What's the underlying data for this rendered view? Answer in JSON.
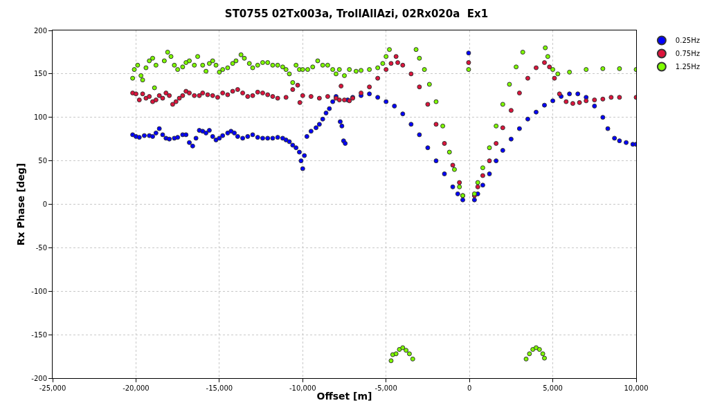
{
  "chart_data": {
    "type": "scatter",
    "title": "ST0755 02Tx003a, TrollAllAzi, 02Rx020a  Ex1",
    "xlabel": "Offset [m]",
    "ylabel": "Rx Phase [deg]",
    "xlim": [
      -25000,
      10000
    ],
    "xticks": [
      {
        "value": -25000,
        "label": "-25,000"
      },
      {
        "value": -20000,
        "label": "-20,000"
      },
      {
        "value": -15000,
        "label": "-15,000"
      },
      {
        "value": -10000,
        "label": "-10,000"
      },
      {
        "value": -5000,
        "label": "-5,000"
      },
      0,
      {
        "value": 5000,
        "label": "5,000"
      },
      {
        "value": 10000,
        "label": "10,000"
      }
    ],
    "ylim": [
      -200,
      200
    ],
    "yticks": [
      -200,
      -150,
      -100,
      -50,
      0,
      50,
      100,
      150,
      200
    ],
    "grid": true,
    "legend": "top right",
    "marker": "circle",
    "series": [
      {
        "name": "0.25Hz",
        "color": "#0000ff",
        "x": [
          -20200,
          -20000,
          -19800,
          -19500,
          -19200,
          -19000,
          -18800,
          -18600,
          -18400,
          -18200,
          -18000,
          -17700,
          -17500,
          -17200,
          -17000,
          -16800,
          -16600,
          -16400,
          -16200,
          -16000,
          -15800,
          -15600,
          -15400,
          -15200,
          -15000,
          -14800,
          -14500,
          -14300,
          -14100,
          -13900,
          -13600,
          -13300,
          -13000,
          -12700,
          -12400,
          -12100,
          -11800,
          -11500,
          -11200,
          -11000,
          -10800,
          -10600,
          -10400,
          -10200,
          -10100,
          -10000,
          -9900,
          -9750,
          -9500,
          -9200,
          -9000,
          -8800,
          -8600,
          -8400,
          -8200,
          -8000,
          -7750,
          -7650,
          -7550,
          -7450,
          -7300,
          -7000,
          -6500,
          -6000,
          -5500,
          -5000,
          -4500,
          -4000,
          -3500,
          -3000,
          -2500,
          -2000,
          -1500,
          -1000,
          -700,
          -400,
          -50,
          300,
          500,
          800,
          1200,
          1600,
          2000,
          2500,
          3000,
          3500,
          4000,
          4500,
          5000,
          5500,
          6000,
          6500,
          7000,
          7500,
          8000,
          8300,
          8700,
          9000,
          9400,
          9800,
          10000
        ],
        "values": [
          80,
          78,
          77,
          79,
          79,
          78,
          82,
          87,
          80,
          76,
          75,
          76,
          77,
          80,
          80,
          71,
          67,
          76,
          85,
          84,
          82,
          85,
          78,
          74,
          76,
          79,
          82,
          84,
          82,
          78,
          76,
          78,
          80,
          77,
          76,
          76,
          76,
          77,
          76,
          74,
          72,
          68,
          65,
          60,
          50,
          41,
          56,
          78,
          84,
          88,
          92,
          98,
          105,
          110,
          118,
          124,
          95,
          90,
          73,
          70,
          120,
          123,
          125,
          127,
          123,
          118,
          113,
          104,
          92,
          80,
          65,
          50,
          35,
          20,
          12,
          5,
          174,
          5,
          12,
          22,
          35,
          50,
          62,
          75,
          87,
          98,
          106,
          114,
          119,
          124,
          127,
          127,
          123,
          113,
          100,
          87,
          76,
          73,
          71,
          69,
          69
        ]
      },
      {
        "name": "0.75Hz",
        "color": "#dc143c",
        "x": [
          -20200,
          -20000,
          -19800,
          -19600,
          -19400,
          -19200,
          -19000,
          -18800,
          -18600,
          -18400,
          -18200,
          -18000,
          -17800,
          -17600,
          -17400,
          -17200,
          -17000,
          -16800,
          -16500,
          -16200,
          -16000,
          -15700,
          -15400,
          -15100,
          -14800,
          -14500,
          -14200,
          -13900,
          -13600,
          -13300,
          -13000,
          -12700,
          -12400,
          -12100,
          -11800,
          -11500,
          -11000,
          -10600,
          -10300,
          -10170,
          -10000,
          -9500,
          -9000,
          -8500,
          -8000,
          -7800,
          -7700,
          -7500,
          -7200,
          -7000,
          -6500,
          -6000,
          -5500,
          -5000,
          -4700,
          -4400,
          -4300,
          -4000,
          -3500,
          -3000,
          -2500,
          -2000,
          -1500,
          -1000,
          -600,
          -400,
          -50,
          300,
          500,
          800,
          1200,
          1600,
          2000,
          2500,
          3000,
          3500,
          4000,
          4500,
          4800,
          5100,
          5400,
          5800,
          6200,
          6600,
          7000,
          7500,
          8000,
          8500,
          9000,
          10000
        ],
        "values": [
          128,
          127,
          120,
          127,
          122,
          124,
          118,
          120,
          125,
          122,
          128,
          125,
          115,
          118,
          122,
          125,
          130,
          128,
          125,
          125,
          128,
          126,
          125,
          123,
          128,
          126,
          130,
          132,
          128,
          124,
          125,
          129,
          128,
          126,
          124,
          122,
          123,
          132,
          137,
          117,
          125,
          124,
          122,
          124,
          122,
          120,
          136,
          120,
          119,
          122,
          128,
          135,
          145,
          155,
          162,
          170,
          163,
          160,
          150,
          135,
          115,
          92,
          70,
          45,
          25,
          10,
          163,
          10,
          20,
          33,
          50,
          70,
          88,
          108,
          128,
          145,
          157,
          163,
          158,
          145,
          127,
          118,
          116,
          117,
          119,
          120,
          121,
          123,
          123,
          123
        ]
      },
      {
        "name": "1.25Hz",
        "color": "#7fff00",
        "x": [
          -20200,
          -20100,
          -19900,
          -19700,
          -19600,
          -19400,
          -19200,
          -19000,
          -18890,
          -18800,
          -18300,
          -18100,
          -17900,
          -17700,
          -17500,
          -17200,
          -17000,
          -16800,
          -16500,
          -16300,
          -16000,
          -15800,
          -15600,
          -15400,
          -15200,
          -15000,
          -14800,
          -14500,
          -14200,
          -14000,
          -13700,
          -13500,
          -13200,
          -13000,
          -12700,
          -12400,
          -12100,
          -11800,
          -11500,
          -11200,
          -11000,
          -10800,
          -10600,
          -10400,
          -10200,
          -10000,
          -9700,
          -9400,
          -9100,
          -8800,
          -8500,
          -8200,
          -8000,
          -7800,
          -7500,
          -7200,
          -6800,
          -6500,
          -6000,
          -5500,
          -5200,
          -5000,
          -4800,
          -4700,
          -4600,
          -4400,
          -4200,
          -4000,
          -3800,
          -3600,
          -3400,
          -3200,
          -3000,
          -2700,
          -2400,
          -2000,
          -1600,
          -1200,
          -900,
          -600,
          -400,
          -50,
          300,
          500,
          800,
          1200,
          1600,
          2000,
          2400,
          2800,
          3200,
          3400,
          3600,
          3800,
          4000,
          4200,
          4400,
          4500,
          4550,
          4700,
          5000,
          5300,
          6000,
          7000,
          8000,
          9000,
          10000
        ],
        "values": [
          145,
          155,
          160,
          148,
          143,
          157,
          165,
          168,
          134,
          160,
          165,
          175,
          170,
          160,
          155,
          158,
          163,
          165,
          160,
          170,
          160,
          153,
          162,
          165,
          160,
          152,
          155,
          157,
          162,
          165,
          172,
          168,
          162,
          157,
          160,
          163,
          163,
          160,
          160,
          158,
          155,
          150,
          140,
          160,
          155,
          155,
          155,
          158,
          165,
          160,
          160,
          155,
          150,
          155,
          148,
          155,
          153,
          154,
          155,
          157,
          162,
          170,
          178,
          -180,
          -173,
          -172,
          -167,
          -165,
          -168,
          -172,
          -178,
          178,
          168,
          155,
          138,
          118,
          90,
          60,
          40,
          20,
          10,
          155,
          12,
          25,
          42,
          65,
          90,
          115,
          138,
          158,
          175,
          -178,
          -172,
          -167,
          -165,
          -167,
          -172,
          -177,
          180,
          170,
          155,
          150,
          152,
          155,
          156,
          156,
          155
        ]
      }
    ]
  }
}
